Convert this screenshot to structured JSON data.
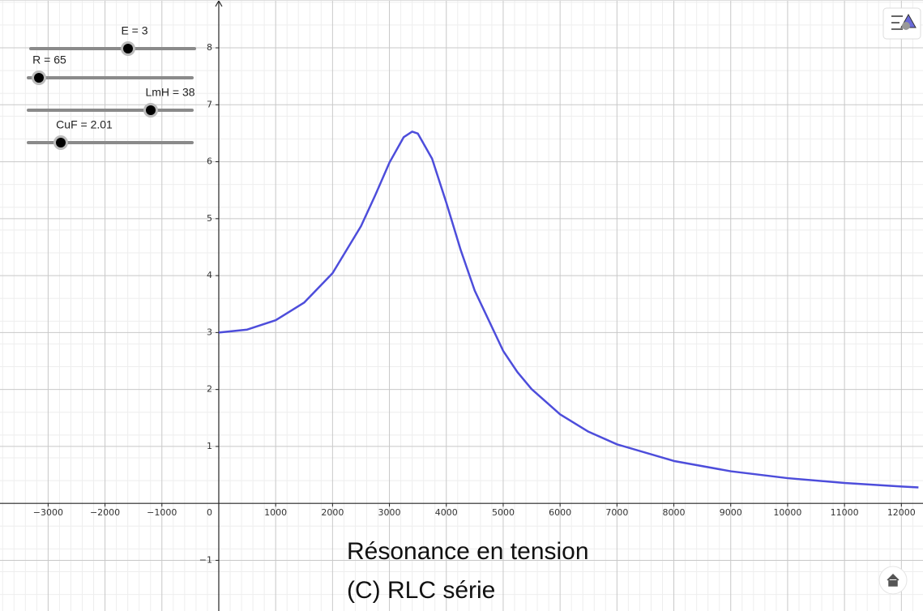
{
  "chart_data": {
    "type": "line",
    "x": [
      0,
      500,
      1000,
      1500,
      2000,
      2500,
      2750,
      3000,
      3250,
      3400,
      3500,
      3750,
      4000,
      4250,
      4500,
      5000,
      5250,
      5500,
      6000,
      6500,
      7000,
      8000,
      9000,
      10000,
      11000,
      12000,
      12300
    ],
    "series": [
      {
        "color": "#4d4ddb",
        "values": [
          3,
          3.052,
          3.216,
          3.525,
          4.043,
          4.868,
          5.41,
          5.984,
          6.43,
          6.529,
          6.494,
          6.052,
          5.281,
          4.458,
          3.735,
          2.678,
          2.305,
          2.007,
          1.564,
          1.258,
          1.037,
          0.745,
          0.564,
          0.443,
          0.358,
          0.296,
          0.281
        ]
      }
    ],
    "xlim": [
      -3846,
      12380
    ],
    "ylim": [
      -1.89,
      8.84
    ],
    "xticks": [
      {
        "value": -3000,
        "label": "−3000"
      },
      {
        "value": -2000,
        "label": "−2000"
      },
      {
        "value": -1000,
        "label": "−1000"
      },
      0,
      1000,
      2000,
      3000,
      4000,
      5000,
      6000,
      7000,
      8000,
      9000,
      10000,
      11000,
      12000
    ],
    "yticks": [
      {
        "value": -1,
        "label": "−1"
      },
      1,
      2,
      3,
      4,
      5,
      6,
      7,
      8
    ],
    "grid": true,
    "annotations": [
      "Résonance en tension",
      "(C) RLC série"
    ]
  },
  "sliders": [
    {
      "label": "E = 3"
    },
    {
      "label": "R = 65"
    },
    {
      "label": "LmH = 38"
    },
    {
      "label": "CuF = 2.01"
    }
  ]
}
